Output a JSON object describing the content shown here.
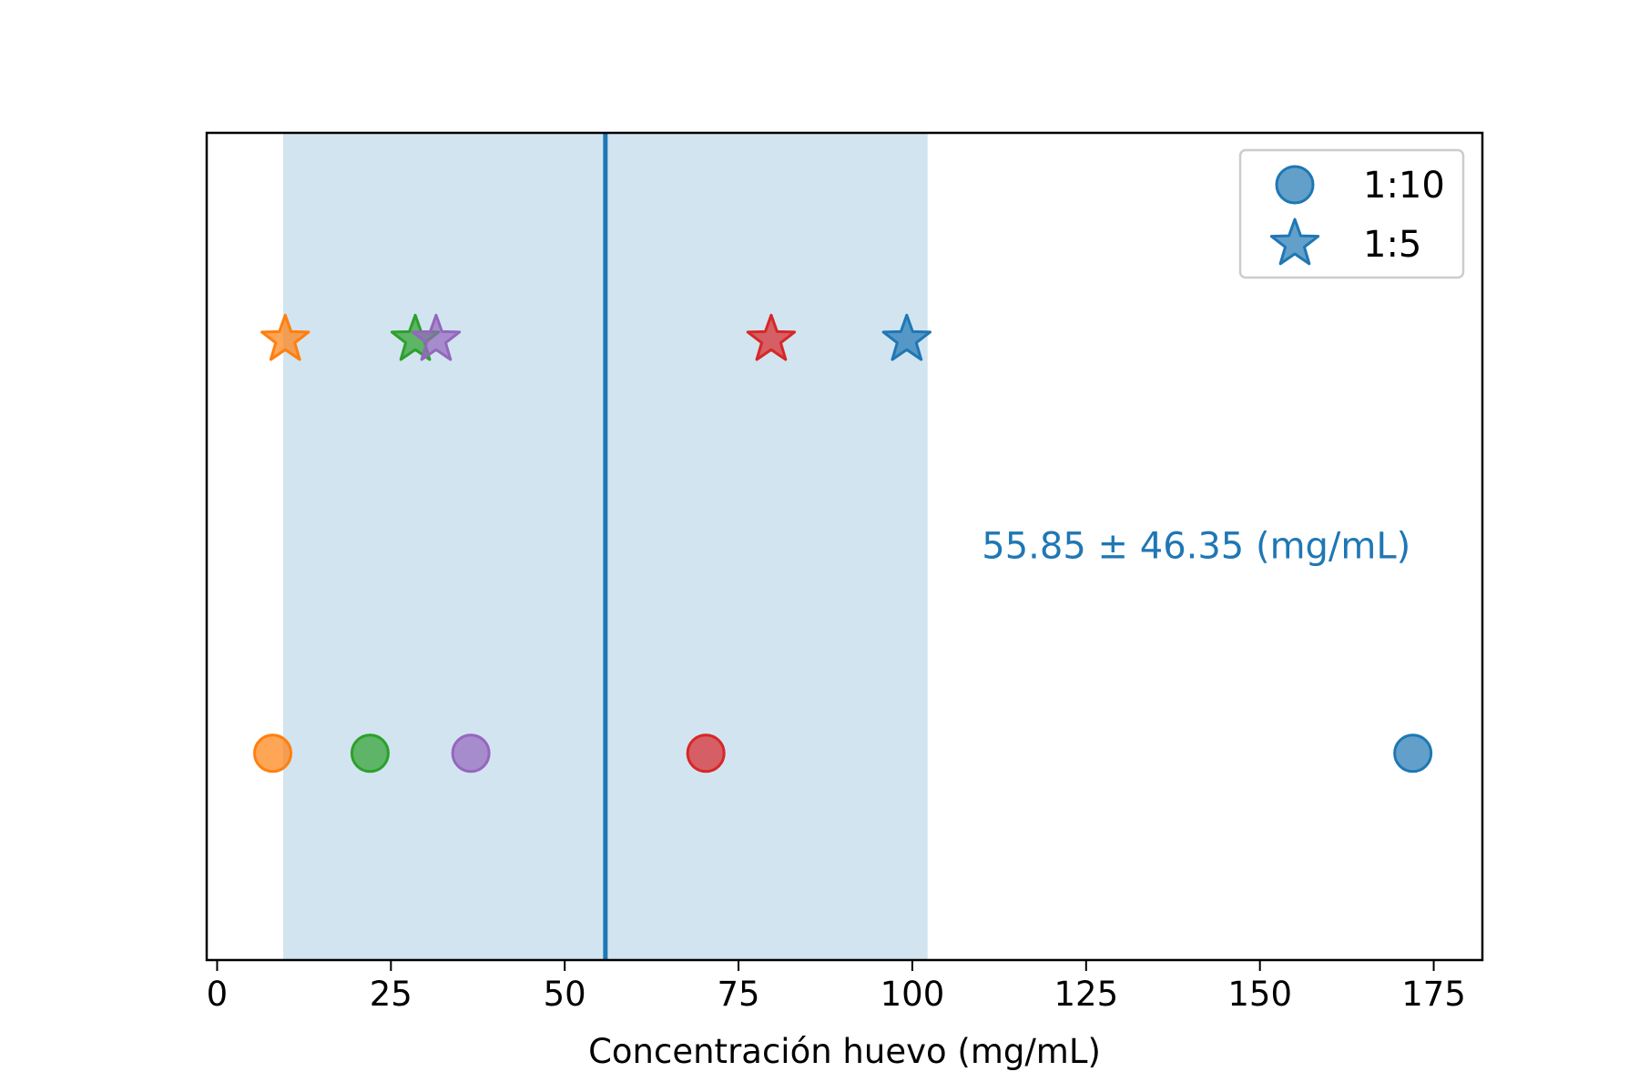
{
  "chart_data": {
    "type": "scatter",
    "title": "",
    "xlabel": "Concentración huevo (mg/mL)",
    "ylabel": "",
    "xlim": [
      -1.5,
      182
    ],
    "ylim": [
      0,
      1
    ],
    "xticks": [
      0,
      25,
      50,
      75,
      100,
      125,
      150,
      175
    ],
    "xtick_labels": [
      "0",
      "25",
      "50",
      "75",
      "100",
      "125",
      "150",
      "175"
    ],
    "yticks": [],
    "grid": false,
    "legend_position": "top-right",
    "mean": 55.85,
    "std": 46.35,
    "band": [
      9.5,
      102.2
    ],
    "annotation": "55.85 ± 46.35 (mg/mL)",
    "annotation_x": 110,
    "annotation_color": "#1f77b4",
    "colors": {
      "mean_line": "#1f77b4",
      "band": "#1f77b4",
      "legend_marker": "#1f77b4"
    },
    "series": [
      {
        "name": "1:10",
        "marker": "circle",
        "y": 0.25,
        "points": [
          {
            "x": 8,
            "color": "#ff7f0e"
          },
          {
            "x": 22,
            "color": "#2ca02c"
          },
          {
            "x": 36.5,
            "color": "#9467bd"
          },
          {
            "x": 70.3,
            "color": "#d62728"
          },
          {
            "x": 172,
            "color": "#1f77b4"
          }
        ]
      },
      {
        "name": "1:5",
        "marker": "star",
        "y": 0.75,
        "points": [
          {
            "x": 9.8,
            "color": "#ff7f0e"
          },
          {
            "x": 28.5,
            "color": "#2ca02c"
          },
          {
            "x": 31.5,
            "color": "#9467bd"
          },
          {
            "x": 79.7,
            "color": "#d62728"
          },
          {
            "x": 99.2,
            "color": "#1f77b4"
          }
        ]
      }
    ]
  }
}
